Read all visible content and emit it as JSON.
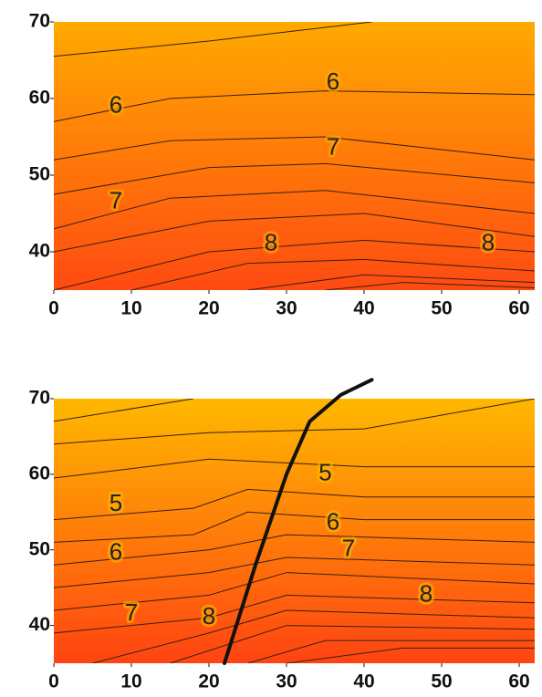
{
  "chart_data": [
    {
      "type": "contour",
      "xlim": [
        0,
        62
      ],
      "ylim": [
        35,
        70
      ],
      "xticks": [
        0,
        10,
        20,
        30,
        40,
        50,
        60
      ],
      "yticks": [
        40,
        50,
        60,
        70
      ],
      "colormap": [
        "#ffaa00",
        "#ff4a12"
      ],
      "contours": [
        {
          "x": [
            0,
            20,
            41
          ],
          "y": [
            65.5,
            67.5,
            70
          ]
        },
        {
          "x": [
            0,
            15,
            35,
            62
          ],
          "y": [
            57,
            60,
            61,
            60.5
          ]
        },
        {
          "x": [
            0,
            15,
            35,
            62
          ],
          "y": [
            52,
            54.5,
            55,
            52
          ]
        },
        {
          "x": [
            0,
            20,
            35,
            62
          ],
          "y": [
            47.5,
            51,
            51.5,
            49
          ]
        },
        {
          "x": [
            0,
            15,
            35,
            62
          ],
          "y": [
            43,
            47,
            48,
            45
          ]
        },
        {
          "x": [
            0,
            20,
            40,
            62
          ],
          "y": [
            40,
            44,
            45,
            42
          ]
        },
        {
          "x": [
            0,
            20,
            40,
            62
          ],
          "y": [
            35,
            40,
            41.5,
            40
          ]
        },
        {
          "x": [
            10,
            25,
            40,
            62
          ],
          "y": [
            35,
            38.5,
            39,
            37.5
          ]
        },
        {
          "x": [
            25,
            40,
            62
          ],
          "y": [
            35,
            37,
            36
          ]
        },
        {
          "x": [
            35,
            45,
            62
          ],
          "y": [
            35,
            36,
            35.3
          ]
        }
      ],
      "contour_labels": [
        {
          "x": 8,
          "y": 59,
          "level": 6
        },
        {
          "x": 36,
          "y": 62,
          "level": 6
        },
        {
          "x": 8,
          "y": 46.5,
          "level": 7
        },
        {
          "x": 36,
          "y": 53.5,
          "level": 7
        },
        {
          "x": 28,
          "y": 41,
          "level": 8
        },
        {
          "x": 56,
          "y": 41,
          "level": 8
        }
      ]
    },
    {
      "type": "contour",
      "xlim": [
        0,
        62
      ],
      "ylim": [
        35,
        70
      ],
      "xticks": [
        0,
        10,
        20,
        30,
        40,
        50,
        60
      ],
      "yticks": [
        40,
        50,
        60,
        70
      ],
      "colormap": [
        "#ffb800",
        "#ff4412"
      ],
      "contours": [
        {
          "x": [
            0,
            18
          ],
          "y": [
            67,
            70
          ]
        },
        {
          "x": [
            0,
            20,
            40,
            62
          ],
          "y": [
            64,
            65.5,
            66,
            70
          ]
        },
        {
          "x": [
            0,
            20,
            40,
            62
          ],
          "y": [
            59.5,
            62,
            61,
            61
          ]
        },
        {
          "x": [
            0,
            18,
            25,
            40,
            62
          ],
          "y": [
            54,
            55.5,
            58,
            57,
            57
          ]
        },
        {
          "x": [
            0,
            18,
            25,
            40,
            62
          ],
          "y": [
            51,
            52,
            55,
            54,
            54
          ]
        },
        {
          "x": [
            0,
            20,
            30,
            62
          ],
          "y": [
            48,
            50,
            52,
            51
          ]
        },
        {
          "x": [
            0,
            20,
            30,
            62
          ],
          "y": [
            45,
            47,
            49,
            48
          ]
        },
        {
          "x": [
            0,
            20,
            30,
            62
          ],
          "y": [
            42,
            44,
            47,
            45.5
          ]
        },
        {
          "x": [
            0,
            20,
            30,
            62
          ],
          "y": [
            39,
            41,
            44,
            43
          ]
        },
        {
          "x": [
            5,
            20,
            30,
            62
          ],
          "y": [
            35,
            39,
            42,
            41
          ]
        },
        {
          "x": [
            15,
            30,
            62
          ],
          "y": [
            35,
            40,
            39.5
          ]
        },
        {
          "x": [
            25,
            35,
            62
          ],
          "y": [
            35,
            38,
            38
          ]
        },
        {
          "x": [
            30,
            45,
            62
          ],
          "y": [
            35,
            37,
            37
          ]
        }
      ],
      "line": {
        "x": [
          22,
          26,
          30,
          33,
          37,
          41
        ],
        "y": [
          35,
          48,
          60,
          67,
          70.5,
          72.5
        ]
      },
      "contour_labels": [
        {
          "x": 8,
          "y": 56,
          "level": 5
        },
        {
          "x": 35,
          "y": 60,
          "level": 5
        },
        {
          "x": 8,
          "y": 49.5,
          "level": 6
        },
        {
          "x": 36,
          "y": 53.5,
          "level": 6
        },
        {
          "x": 10,
          "y": 41.5,
          "level": 7
        },
        {
          "x": 38,
          "y": 50,
          "level": 7
        },
        {
          "x": 20,
          "y": 41,
          "level": 8
        },
        {
          "x": 48,
          "y": 44,
          "level": 8
        }
      ]
    }
  ]
}
